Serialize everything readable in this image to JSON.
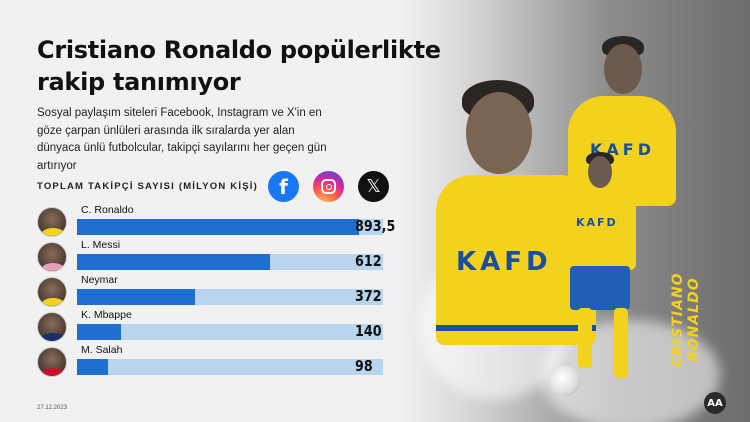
{
  "title": "Cristiano Ronaldo popülerlikte rakip tanımıyor",
  "subtitle": "Sosyal paylaşım siteleri Facebook, Instagram ve X'in en göze çarpan ünlüleri arasında ilk sıralarda yer alan dünyaca ünlü futbolcular, takipçi sayılarını her geçen gün artırıyor",
  "social_icons": [
    "facebook-icon",
    "instagram-icon",
    "x-icon"
  ],
  "photo_caption": "CRISTIANO RONALDO",
  "jersey_text": "KAFD",
  "logo": "AA",
  "date": "27.12.2023",
  "colors": {
    "bar": "#1f6fd1",
    "track": "#b8d4ee",
    "jersey": "#f3d21d"
  },
  "chart_data": {
    "type": "bar",
    "orientation": "horizontal",
    "ylabel": "TOPLAM TAKİPÇİ SAYISI (MİLYON KİŞİ)",
    "categories": [
      "C. Ronaldo",
      "L. Messi",
      "Neymar",
      "K. Mbappe",
      "M. Salah"
    ],
    "values": [
      893.5,
      612,
      372,
      140,
      98
    ],
    "value_labels": [
      "893,5",
      "612",
      "372",
      "140",
      "98"
    ],
    "xlim": [
      0,
      1000
    ]
  }
}
